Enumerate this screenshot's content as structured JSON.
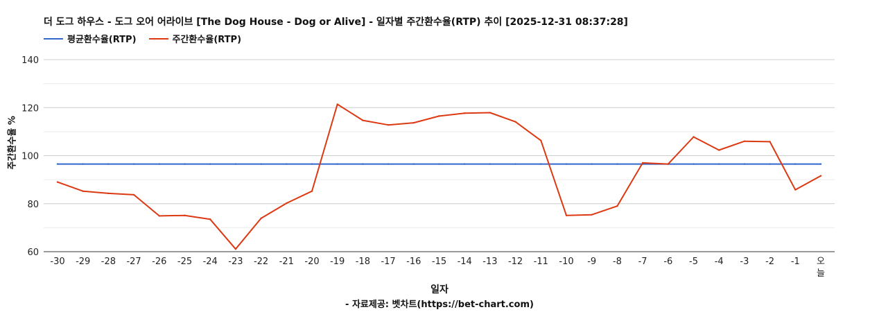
{
  "chart_data": {
    "type": "line",
    "title": "더 도그 하우스 - 도그 오어 어라이브 [The Dog House - Dog or Alive] - 일자별 주간환수율(RTP) 추이 [2025-12-31 08:37:28]",
    "xlabel": "일자",
    "ylabel": "주간환수율 %",
    "ylim": [
      60,
      140
    ],
    "yticks": [
      60,
      80,
      100,
      120,
      140
    ],
    "grid": true,
    "legend_position": "top-left",
    "categories": [
      "-30",
      "-29",
      "-28",
      "-27",
      "-26",
      "-25",
      "-24",
      "-23",
      "-22",
      "-21",
      "-20",
      "-19",
      "-18",
      "-17",
      "-16",
      "-15",
      "-14",
      "-13",
      "-12",
      "-11",
      "-10",
      "-9",
      "-8",
      "-7",
      "-6",
      "-5",
      "-4",
      "-3",
      "-2",
      "-1",
      "오늘"
    ],
    "series": [
      {
        "name": "평균환수율(RTP)",
        "color": "#3366cc",
        "values": [
          96.5,
          96.5,
          96.5,
          96.5,
          96.5,
          96.5,
          96.5,
          96.5,
          96.5,
          96.5,
          96.5,
          96.5,
          96.5,
          96.5,
          96.5,
          96.5,
          96.5,
          96.5,
          96.5,
          96.5,
          96.5,
          96.5,
          96.5,
          96.5,
          96.5,
          96.5,
          96.5,
          96.5,
          96.5,
          96.5,
          96.5
        ]
      },
      {
        "name": "주간환수율(RTP)",
        "color": "#dc3912",
        "values": [
          89.0,
          85.2,
          84.3,
          83.7,
          74.9,
          75.1,
          73.5,
          61.1,
          73.9,
          80.2,
          85.2,
          121.4,
          114.7,
          112.8,
          113.7,
          116.5,
          117.7,
          117.9,
          114.1,
          106.3,
          75.1,
          75.4,
          79.0,
          97.0,
          96.5,
          107.8,
          102.3,
          106.0,
          105.8,
          85.8,
          91.6
        ]
      }
    ]
  },
  "footer": {
    "source": "- 자료제공: 벳차트(https://bet-chart.com)"
  }
}
